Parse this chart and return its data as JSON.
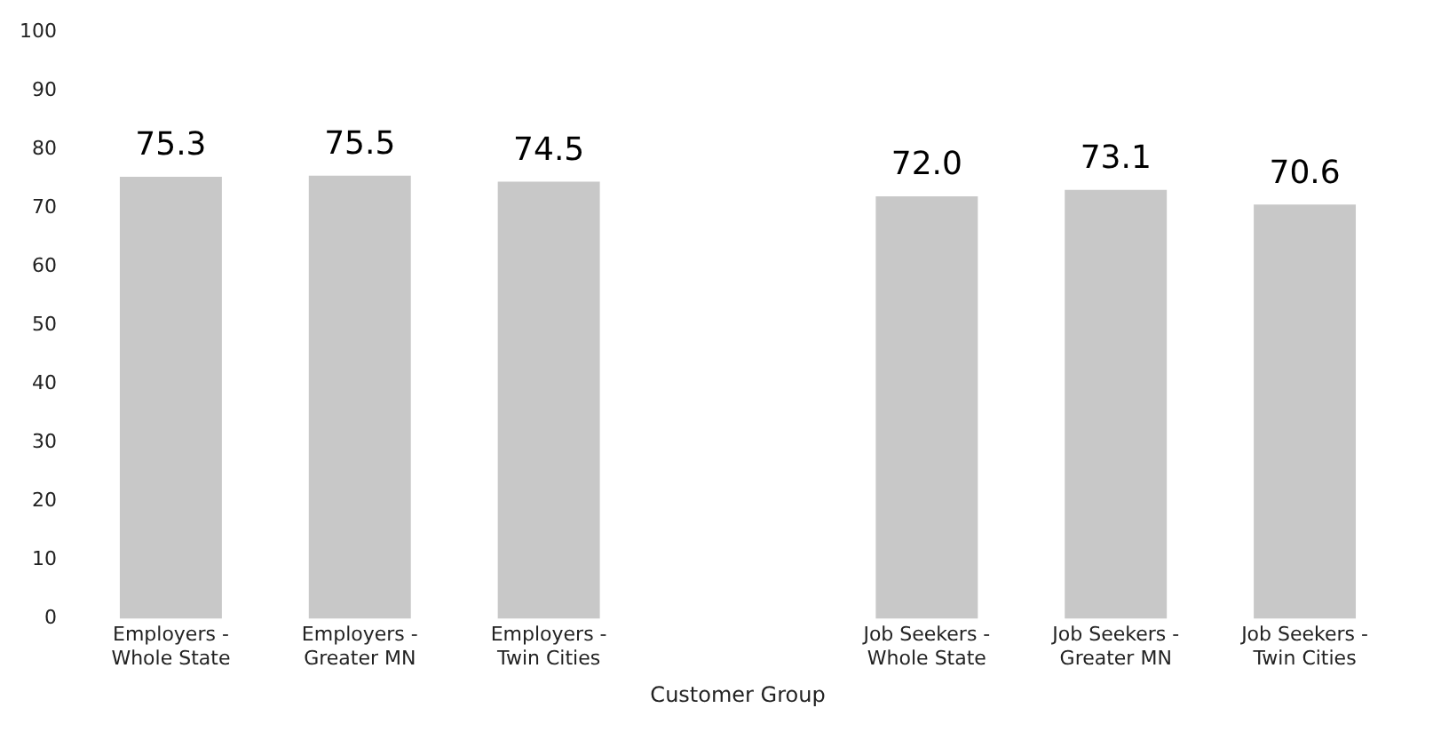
{
  "chart_data": {
    "type": "bar",
    "xlabel": "Customer Group",
    "categories": [
      "Employers -\nWhole State",
      "Employers -\nGreater MN",
      "Employers -\nTwin Cities",
      null,
      "Job Seekers -\nWhole State",
      "Job Seekers -\nGreater MN",
      "Job Seekers -\nTwin Cities"
    ],
    "values": [
      75.3,
      75.5,
      74.5,
      null,
      72.0,
      73.1,
      70.6
    ],
    "value_labels": [
      "75.3",
      "75.5",
      "74.5",
      null,
      "72.0",
      "73.1",
      "70.6"
    ],
    "color": "#c8c8c8",
    "ylim": [
      0,
      100
    ],
    "yticks": [
      0,
      10,
      20,
      30,
      40,
      50,
      60,
      70,
      80,
      90,
      100
    ],
    "grid": false,
    "legend": false
  }
}
